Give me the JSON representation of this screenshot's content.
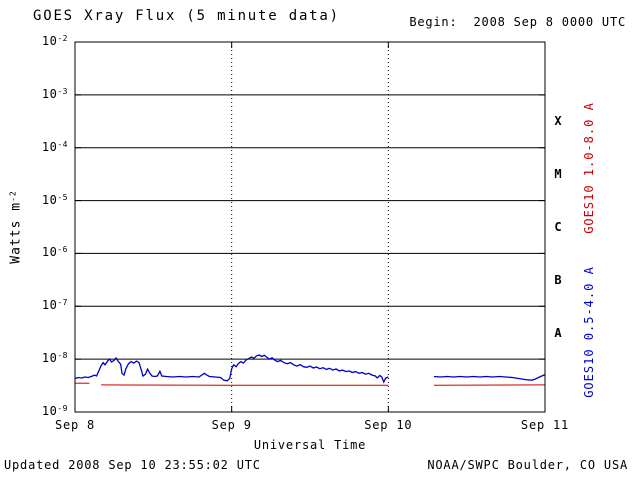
{
  "footer": {
    "updated": "Updated 2008 Sep 10 23:55:02 UTC",
    "source": "NOAA/SWPC Boulder, CO USA"
  },
  "chart_data": {
    "type": "line",
    "title": "GOES Xray Flux (5 minute data)",
    "begin_label": "Begin:  2008 Sep 8 0000 UTC",
    "xlabel": "Universal Time",
    "ylabel_base": "Watts m",
    "ylabel_exp": "-2",
    "x_range_hours": [
      0,
      72
    ],
    "y_range_exp": [
      -2,
      -9
    ],
    "y_decades_exp": [
      -2,
      -3,
      -4,
      -5,
      -6,
      -7,
      -8,
      -9
    ],
    "x_ticks": [
      {
        "hours": 0,
        "label": "Sep 8"
      },
      {
        "hours": 24,
        "label": "Sep 9"
      },
      {
        "hours": 48,
        "label": "Sep 10"
      },
      {
        "hours": 72,
        "label": "Sep 11"
      }
    ],
    "day_gridlines_t": [
      24,
      48
    ],
    "flare_classes": [
      {
        "label": "X",
        "exp_low": -4,
        "exp_high": -3
      },
      {
        "label": "M",
        "exp_low": -5,
        "exp_high": -4
      },
      {
        "label": "C",
        "exp_low": -6,
        "exp_high": -5
      },
      {
        "label": "B",
        "exp_low": -7,
        "exp_high": -6
      },
      {
        "label": "A",
        "exp_low": -8,
        "exp_high": -7
      }
    ],
    "series": [
      {
        "name": "GOES10 1.0-8.0 A",
        "color": "#cc0000",
        "segments": [
          [
            [
              0,
              3.5e-09
            ],
            [
              2.2,
              3.5e-09
            ]
          ],
          [
            [
              4.0,
              3.25e-09
            ],
            [
              24,
              3.2e-09
            ],
            [
              48,
              3.2e-09
            ]
          ],
          [
            [
              55,
              3.2e-09
            ],
            [
              72,
              3.25e-09
            ]
          ]
        ]
      },
      {
        "name": "GOES10 0.5-4.0 A",
        "color": "#0000cc",
        "segments": [
          [
            [
              0,
              4.3e-09
            ],
            [
              0.5,
              4.5e-09
            ],
            [
              1,
              4.4e-09
            ],
            [
              1.5,
              4.6e-09
            ],
            [
              2,
              4.5e-09
            ],
            [
              2.5,
              4.7e-09
            ],
            [
              3,
              5e-09
            ],
            [
              3.3,
              4.8e-09
            ],
            [
              3.6,
              5.8e-09
            ],
            [
              4,
              7.5e-09
            ],
            [
              4.3,
              8.6e-09
            ],
            [
              4.6,
              7.8e-09
            ],
            [
              5,
              9.2e-09
            ],
            [
              5.3,
              1e-08
            ],
            [
              5.6,
              8.8e-09
            ],
            [
              6,
              9.6e-09
            ],
            [
              6.3,
              1.05e-08
            ],
            [
              6.6,
              9.2e-09
            ],
            [
              7,
              8e-09
            ],
            [
              7.2,
              5.4e-09
            ],
            [
              7.5,
              5e-09
            ],
            [
              7.8,
              6.6e-09
            ],
            [
              8.2,
              8.2e-09
            ],
            [
              8.6,
              9e-09
            ],
            [
              9,
              8.4e-09
            ],
            [
              9.4,
              9.2e-09
            ],
            [
              9.8,
              8.6e-09
            ],
            [
              10.2,
              6e-09
            ],
            [
              10.4,
              4.8e-09
            ],
            [
              10.8,
              5.2e-09
            ],
            [
              11.1,
              6.5e-09
            ],
            [
              11.4,
              5.6e-09
            ],
            [
              11.8,
              4.8e-09
            ],
            [
              12.2,
              4.7e-09
            ],
            [
              12.6,
              4.8e-09
            ],
            [
              13,
              5.9e-09
            ],
            [
              13.3,
              4.8e-09
            ],
            [
              14,
              4.7e-09
            ],
            [
              15,
              4.6e-09
            ],
            [
              16,
              4.7e-09
            ],
            [
              17,
              4.6e-09
            ],
            [
              18,
              4.7e-09
            ],
            [
              19,
              4.6e-09
            ],
            [
              19.8,
              5.4e-09
            ],
            [
              20.2,
              5e-09
            ],
            [
              20.6,
              4.7e-09
            ],
            [
              21.5,
              4.6e-09
            ],
            [
              22.3,
              4.5e-09
            ],
            [
              22.8,
              4e-09
            ],
            [
              23.3,
              3.9e-09
            ],
            [
              23.7,
              4.3e-09
            ],
            [
              24,
              6.6e-09
            ],
            [
              24.3,
              7.8e-09
            ],
            [
              24.7,
              7.2e-09
            ],
            [
              25,
              8.2e-09
            ],
            [
              25.4,
              9e-09
            ],
            [
              25.8,
              8.4e-09
            ],
            [
              26.2,
              9.6e-09
            ],
            [
              26.6,
              1.02e-08
            ],
            [
              27,
              1.1e-08
            ],
            [
              27.4,
              1.04e-08
            ],
            [
              27.8,
              1.15e-08
            ],
            [
              28.2,
              1.2e-08
            ],
            [
              28.6,
              1.12e-08
            ],
            [
              29,
              1.18e-08
            ],
            [
              29.4,
              1.08e-08
            ],
            [
              29.8,
              1e-08
            ],
            [
              30.2,
              1.06e-08
            ],
            [
              30.6,
              9.6e-09
            ],
            [
              31,
              9e-09
            ],
            [
              31.5,
              9.5e-09
            ],
            [
              32,
              8.6e-09
            ],
            [
              32.5,
              8.2e-09
            ],
            [
              33,
              8.6e-09
            ],
            [
              33.5,
              7.8e-09
            ],
            [
              34,
              7.4e-09
            ],
            [
              34.5,
              7.9e-09
            ],
            [
              35,
              7.2e-09
            ],
            [
              35.5,
              7e-09
            ],
            [
              36,
              7.4e-09
            ],
            [
              36.5,
              6.8e-09
            ],
            [
              37,
              7.1e-09
            ],
            [
              37.5,
              6.6e-09
            ],
            [
              38,
              6.9e-09
            ],
            [
              38.5,
              6.4e-09
            ],
            [
              39,
              6.7e-09
            ],
            [
              39.5,
              6.2e-09
            ],
            [
              40,
              6.5e-09
            ],
            [
              40.5,
              6e-09
            ],
            [
              41,
              6.2e-09
            ],
            [
              41.5,
              5.8e-09
            ],
            [
              42,
              6e-09
            ],
            [
              42.5,
              5.6e-09
            ],
            [
              43,
              5.8e-09
            ],
            [
              43.5,
              5.4e-09
            ],
            [
              44,
              5.6e-09
            ],
            [
              44.5,
              5.2e-09
            ],
            [
              45,
              5.4e-09
            ],
            [
              45.5,
              5e-09
            ],
            [
              46,
              4.8e-09
            ],
            [
              46.3,
              4.4e-09
            ],
            [
              46.7,
              4.9e-09
            ],
            [
              47,
              4.6e-09
            ],
            [
              47.3,
              3.7e-09
            ],
            [
              47.6,
              4.4e-09
            ],
            [
              48,
              4.6e-09
            ]
          ],
          [
            [
              55,
              4.7e-09
            ],
            [
              56,
              4.6e-09
            ],
            [
              57,
              4.7e-09
            ],
            [
              58,
              4.6e-09
            ],
            [
              59,
              4.7e-09
            ],
            [
              60,
              4.6e-09
            ],
            [
              61,
              4.7e-09
            ],
            [
              62,
              4.6e-09
            ],
            [
              63,
              4.7e-09
            ],
            [
              64,
              4.6e-09
            ],
            [
              65,
              4.7e-09
            ],
            [
              66,
              4.6e-09
            ],
            [
              67,
              4.5e-09
            ],
            [
              68,
              4.3e-09
            ],
            [
              69,
              4.1e-09
            ],
            [
              70,
              4e-09
            ],
            [
              70.5,
              4.2e-09
            ],
            [
              71,
              4.5e-09
            ],
            [
              71.5,
              4.8e-09
            ],
            [
              72,
              5.1e-09
            ]
          ]
        ]
      }
    ]
  }
}
